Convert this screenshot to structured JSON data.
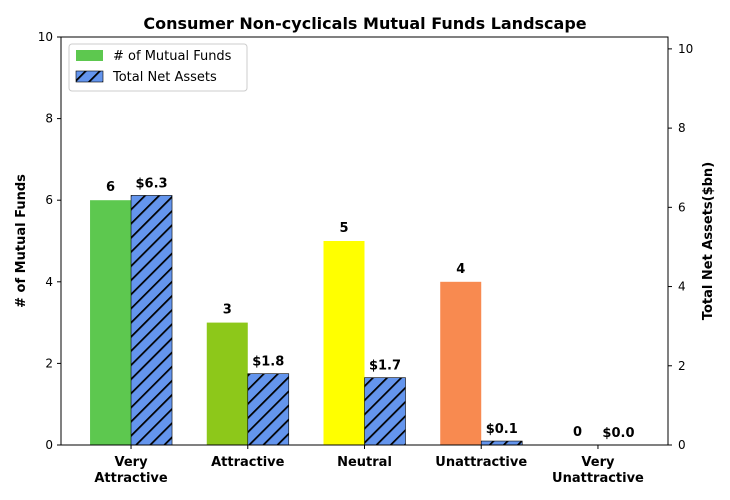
{
  "chart_data": {
    "type": "bar",
    "title": "Consumer Non-cyclicals Mutual Funds Landscape",
    "categories": [
      "Very\nAttractive",
      "Attractive",
      "Neutral",
      "Unattractive",
      "Very\nUnattractive"
    ],
    "ylabel_left": "# of Mutual Funds",
    "ylabel_right": "Total Net Assets($bn)",
    "ylim_left": [
      0,
      10
    ],
    "ylim_right": [
      0,
      10.3
    ],
    "yticks_left": [
      "0",
      "2",
      "4",
      "6",
      "8",
      "10"
    ],
    "yticks_right": [
      "0",
      "2",
      "4",
      "6",
      "8",
      "10"
    ],
    "legend_position": "top-left",
    "grid": false,
    "series": [
      {
        "name": "# of Mutual Funds",
        "axis": "left",
        "values": [
          6,
          3,
          5,
          4,
          0
        ],
        "labels": [
          "6",
          "3",
          "5",
          "4",
          "0"
        ],
        "colors": [
          "#5dc84f",
          "#8dc81a",
          "#ffff00",
          "#f88a50",
          "#e03020"
        ],
        "legend_color": "#5dc84f"
      },
      {
        "name": "Total Net Assets",
        "axis": "right",
        "values": [
          6.3,
          1.8,
          1.7,
          0.1,
          0.0
        ],
        "labels": [
          "$6.3",
          "$1.8",
          "$1.7",
          "$0.1",
          "$0.0"
        ],
        "color": "#6495ed",
        "hatch": "diagonal"
      }
    ]
  }
}
